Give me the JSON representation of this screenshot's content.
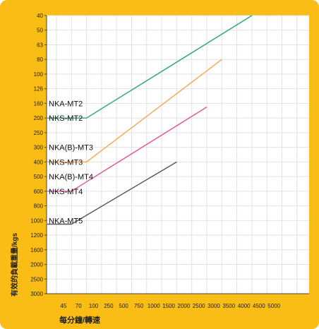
{
  "chart_data": {
    "type": "line",
    "xlabel": "每分鐘/轉速",
    "ylabel": "有效的負載重量/kgs",
    "x_ticks": [
      "45",
      "70",
      "100",
      "250",
      "500",
      "750",
      "1000",
      "1500",
      "2000",
      "2500",
      "3000",
      "3500",
      "4000",
      "4500",
      "5000"
    ],
    "y_ticks": [
      "40",
      "50",
      "63",
      "80",
      "100",
      "126",
      "160",
      "200",
      "250",
      "300",
      "400",
      "500",
      "600",
      "800",
      "1000",
      "1200",
      "1600",
      "2000",
      "2500",
      "3000"
    ],
    "y_inverted": true,
    "grid": true,
    "series": [
      {
        "color": "#2aa86a",
        "points": [
          [
            "45",
            "200"
          ],
          [
            "100",
            "200"
          ],
          [
            "4500",
            "40"
          ]
        ]
      },
      {
        "color": "#f6a64e",
        "points": [
          [
            "45",
            "400"
          ],
          [
            "100",
            "400"
          ],
          [
            "3500",
            "80"
          ]
        ]
      },
      {
        "color": "#e2559b",
        "points": [
          [
            "45",
            "600"
          ],
          [
            "70",
            "600"
          ],
          [
            "3000",
            "170"
          ]
        ]
      },
      {
        "color": "#555555",
        "points": [
          [
            "45",
            "1050"
          ],
          [
            "70",
            "1050"
          ],
          [
            "2000",
            "400"
          ]
        ]
      }
    ],
    "annotations": [
      {
        "text": "NKA-MT2",
        "ypos": "160"
      },
      {
        "text": "NKS-MT2",
        "ypos": "200"
      },
      {
        "text": "NKA(B)-MT3",
        "ypos": "300"
      },
      {
        "text": "NKS-MT3",
        "ypos": "400"
      },
      {
        "text": "NKA(B)-MT4",
        "ypos": "500"
      },
      {
        "text": "NKS-MT4",
        "ypos": "600"
      },
      {
        "text": "NKA-MT5",
        "ypos": "1000"
      }
    ]
  }
}
